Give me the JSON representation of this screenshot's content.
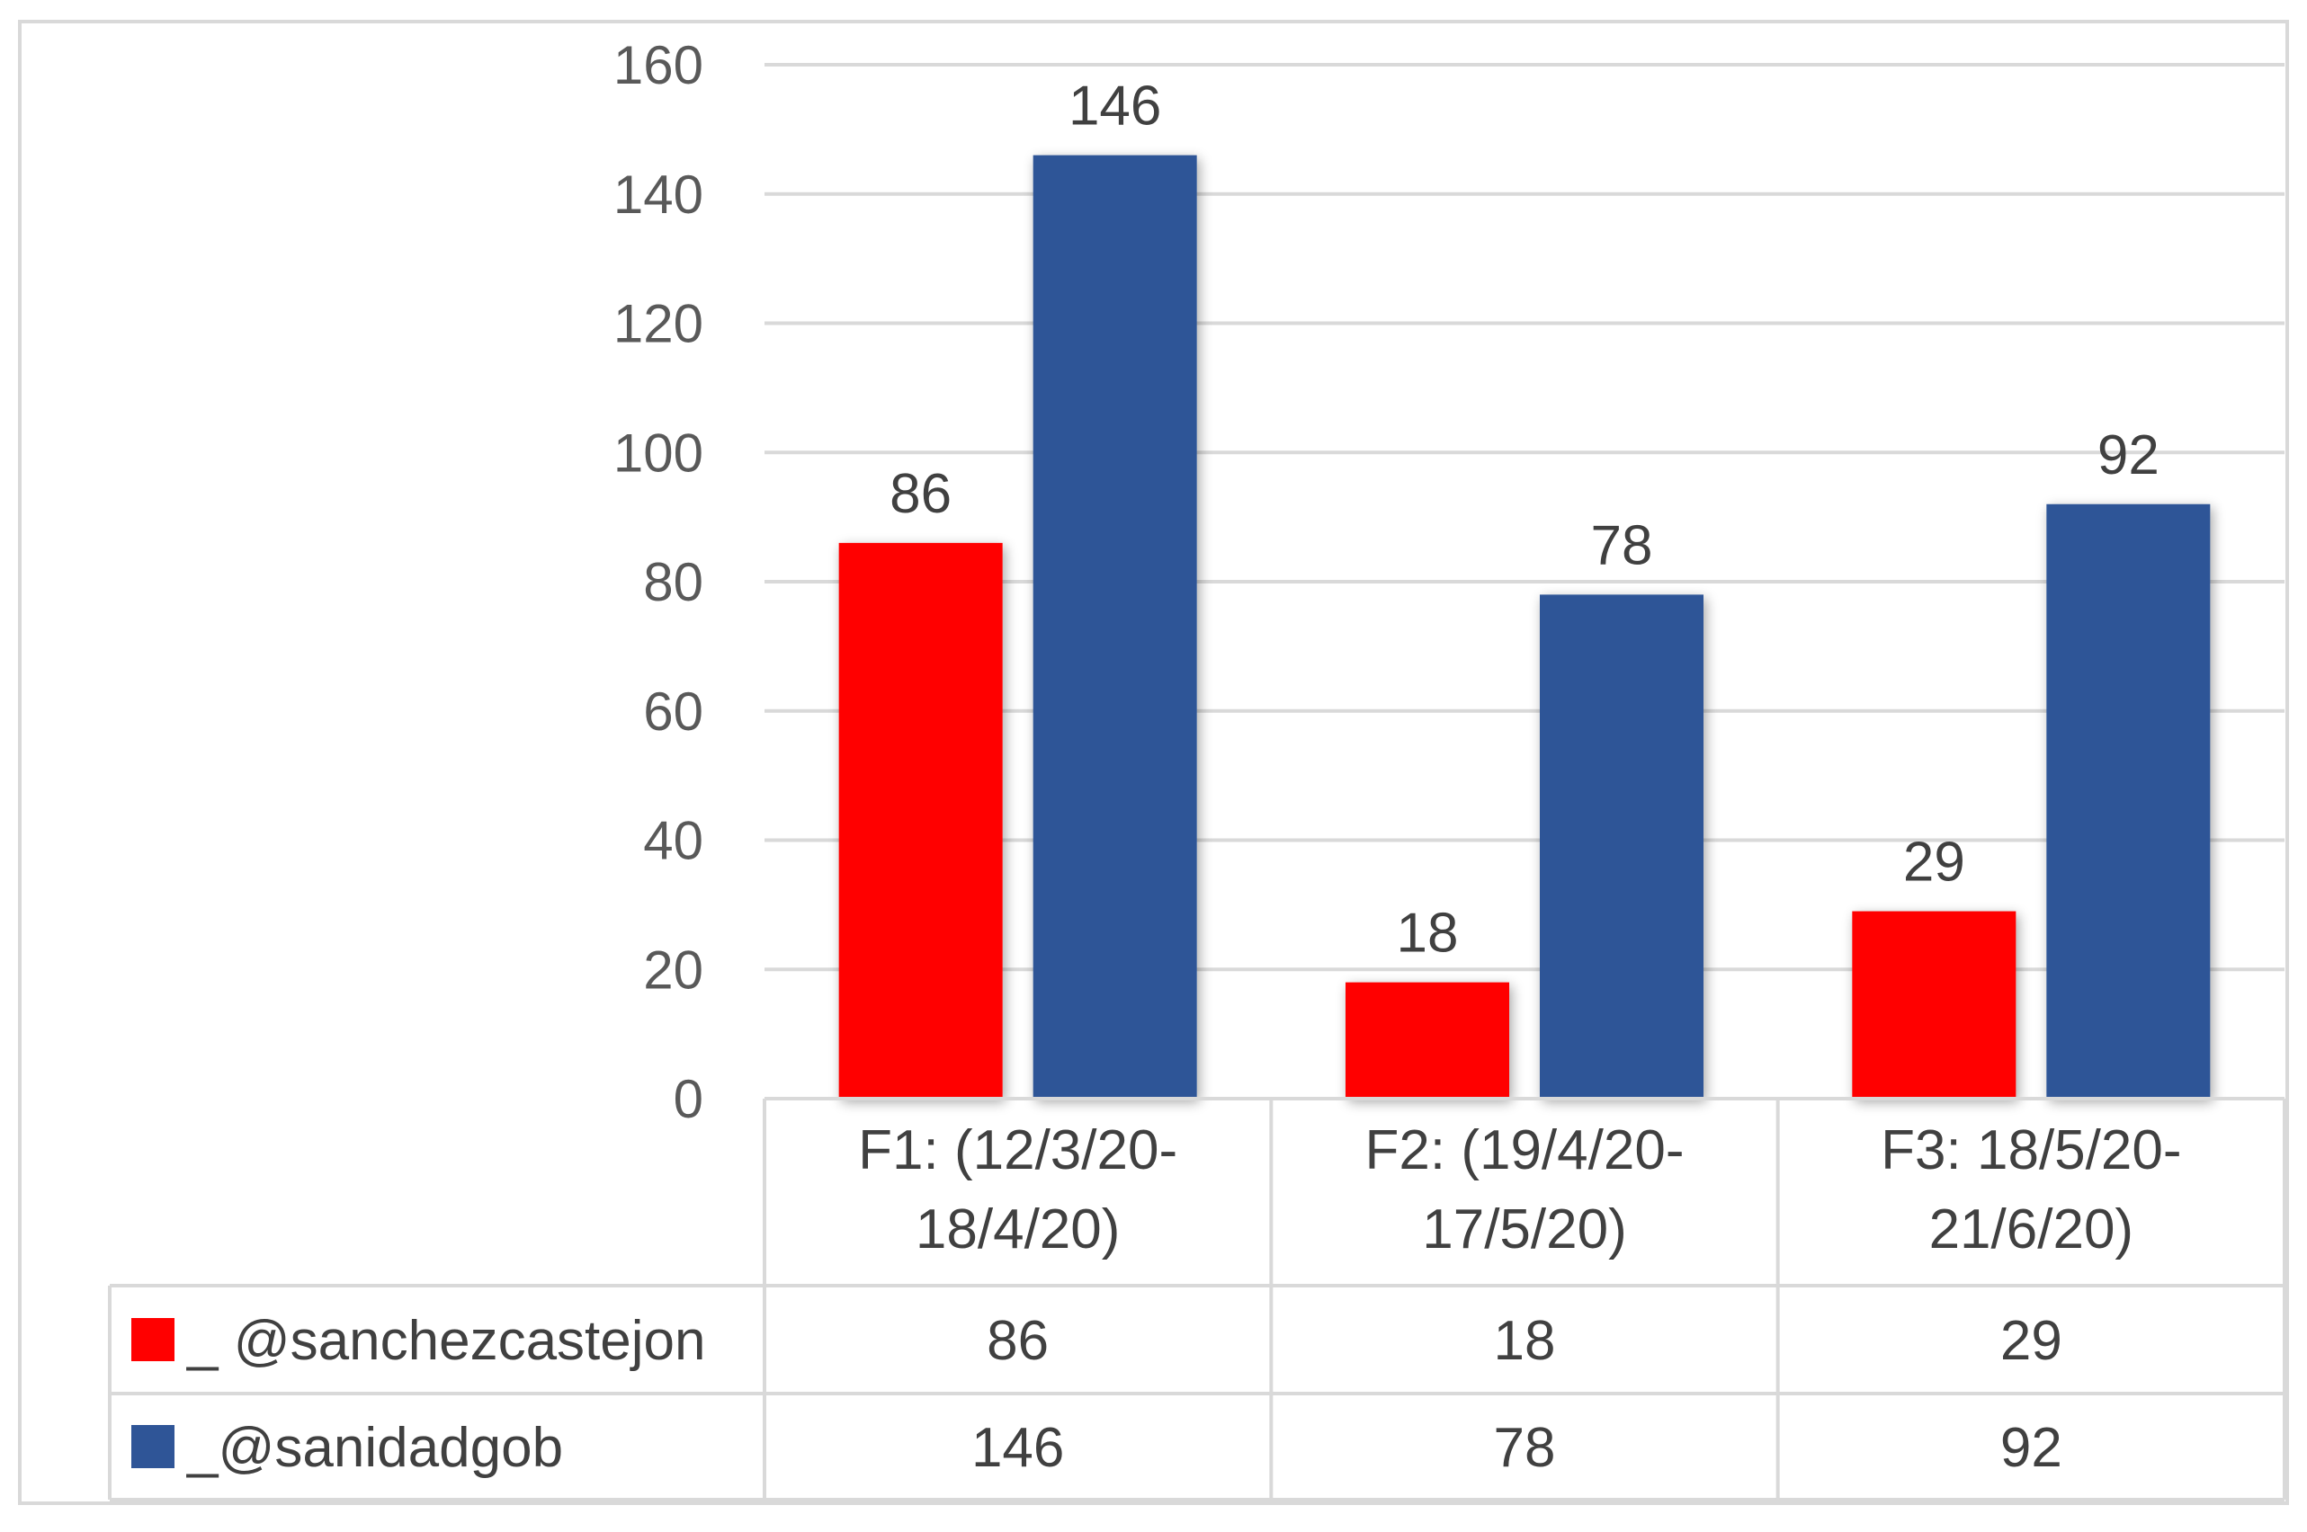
{
  "chart_data": {
    "type": "bar",
    "title": "",
    "xlabel": "",
    "ylabel": "",
    "ylim": [
      0,
      160
    ],
    "yticks": [
      0,
      20,
      40,
      60,
      80,
      100,
      120,
      140,
      160
    ],
    "grid": true,
    "legend": "data-table-left",
    "categories": [
      [
        "F1: (12/3/20-",
        "18/4/20)"
      ],
      [
        "F2: (19/4/20-",
        "17/5/20)"
      ],
      [
        "F3: 18/5/20-",
        "21/6/20)"
      ]
    ],
    "series": [
      {
        "name": "_ @sanchezcastejon",
        "color": "#ff0000",
        "values": [
          86,
          18,
          29
        ]
      },
      {
        "name": "_@sanidadgob",
        "color": "#2f5597",
        "values": [
          146,
          78,
          92
        ]
      }
    ],
    "colors": {
      "grid": "#d9d9d9",
      "table_border": "#d9d9d9",
      "frame": "#d9d9d9"
    }
  }
}
